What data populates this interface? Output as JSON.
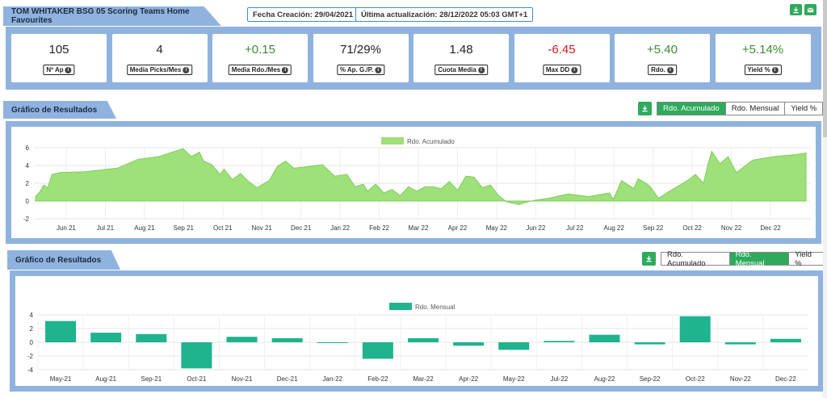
{
  "header": {
    "title": "TOM WHITAKER BSG 05 Scoring Teams Home Favourites",
    "created": "Fecha Creación: 29/04/2021",
    "updated": "Última actualización: 28/12/2022 05:03 GMT+1",
    "icons": [
      "download-icon",
      "mail-icon"
    ]
  },
  "stats": [
    {
      "value": "105",
      "label": "Nº Ap",
      "tone": "neutral"
    },
    {
      "value": "4",
      "label": "Media Picks/Mes",
      "tone": "neutral"
    },
    {
      "value": "+0.15",
      "label": "Media Rdo./Mes",
      "tone": "pos"
    },
    {
      "value": "71/29%",
      "label": "% Ap. G./P.",
      "tone": "neutral"
    },
    {
      "value": "1.48",
      "label": "Cuota Media",
      "tone": "neutral"
    },
    {
      "value": "-6.45",
      "label": "Max DD",
      "tone": "neg"
    },
    {
      "value": "+5.40",
      "label": "Rdo.",
      "tone": "pos"
    },
    {
      "value": "+5.14%",
      "label": "Yield %",
      "tone": "pos"
    }
  ],
  "chart1": {
    "section_title": "Gráfico de Resultados",
    "toggles": [
      "Rdo. Acumulado",
      "Rdo. Mensual",
      "Yield %"
    ],
    "active": 0
  },
  "chart2": {
    "section_title": "Gráfico de Resultados",
    "toggles": [
      "Rdo. Acumulado",
      "Rdo. Mensual",
      "Yield %"
    ],
    "active": 1
  },
  "colors": {
    "accent": "#2eaa5c",
    "frame": "#8fb3de",
    "area": "#9ee07a",
    "bar": "#1fb38e",
    "negative": "#d11b1b",
    "positive": "#3b8b2e"
  },
  "chart_data": [
    {
      "type": "area",
      "legend": "Rdo. Acumulado",
      "ylim": [
        -2,
        6
      ],
      "yticks": [
        "-2",
        "0",
        "2",
        "4",
        "6"
      ],
      "xticks": [
        "Jun 21",
        "Jul 21",
        "Aug 21",
        "Sep 21",
        "Oct 21",
        "Nov 21",
        "Dec 21",
        "Jan 22",
        "Feb 22",
        "Mar 22",
        "Apr 22",
        "May 22",
        "Jun 22",
        "Jul 22",
        "Aug 22",
        "Sep 22",
        "Oct 22",
        "Nov 22",
        "Dec 22"
      ],
      "x": [
        0,
        0.1,
        0.2,
        0.3,
        0.4,
        0.6,
        1.2,
        2.0,
        2.5,
        3.0,
        3.2,
        3.6,
        3.8,
        4.0,
        4.1,
        4.3,
        4.5,
        4.6,
        4.8,
        5.0,
        5.2,
        5.4,
        5.7,
        5.9,
        6.1,
        6.3,
        6.7,
        7.0,
        7.3,
        7.6,
        7.8,
        8.0,
        8.1,
        8.3,
        8.5,
        8.7,
        8.9,
        9.1,
        9.3,
        9.5,
        9.7,
        9.9,
        10.1,
        10.3,
        10.5,
        10.7,
        10.9,
        11.1,
        11.3,
        11.5,
        11.8,
        12.0,
        12.2,
        12.5,
        13.0,
        13.5,
        14.0,
        14.1,
        14.3,
        14.6,
        14.7,
        14.9,
        15.0,
        15.2,
        15.5,
        15.8,
        16.0,
        16.1,
        16.3,
        16.4,
        16.5,
        16.7,
        16.9,
        17.1,
        17.5,
        18.0,
        18.5,
        18.8
      ],
      "y": [
        0.5,
        1.0,
        1.8,
        1.5,
        3.0,
        3.2,
        3.3,
        3.7,
        4.7,
        5.0,
        5.3,
        5.9,
        5.0,
        5.5,
        4.5,
        4.1,
        3.0,
        3.6,
        2.4,
        3.1,
        2.2,
        1.5,
        2.3,
        3.9,
        4.5,
        3.7,
        3.9,
        4.1,
        2.8,
        3.0,
        1.6,
        1.9,
        1.1,
        1.9,
        0.9,
        1.3,
        0.6,
        1.6,
        1.1,
        1.6,
        1.6,
        1.4,
        2.2,
        1.2,
        2.8,
        2.7,
        1.5,
        1.8,
        0.6,
        -0.1,
        -0.4,
        -0.1,
        0.1,
        0.3,
        0.8,
        0.5,
        0.9,
        0.2,
        2.3,
        1.4,
        2.5,
        2.0,
        1.6,
        0.3,
        1.2,
        2.0,
        2.6,
        3.0,
        2.0,
        4.0,
        5.6,
        4.2,
        5.0,
        3.2,
        4.6,
        5.0,
        5.2,
        5.4
      ]
    },
    {
      "type": "bar",
      "legend": "Rdo. Mensual",
      "ylim": [
        -4,
        4
      ],
      "yticks": [
        "-4",
        "-2",
        "0",
        "2",
        "4"
      ],
      "categories": [
        "May-21",
        "Aug-21",
        "Sep-21",
        "Oct-21",
        "Nov-21",
        "Dec-21",
        "Jan-22",
        "Feb-22",
        "Mar-22",
        "Apr-22",
        "May-22",
        "Jul-22",
        "Aug-22",
        "Sep-22",
        "Oct-22",
        "Nov-22",
        "Dec-22"
      ],
      "values": [
        3.1,
        1.4,
        1.2,
        -3.8,
        0.8,
        0.6,
        -0.1,
        -2.4,
        0.6,
        -0.5,
        -1.1,
        0.2,
        1.1,
        -0.3,
        3.8,
        -0.3,
        0.5
      ]
    }
  ]
}
